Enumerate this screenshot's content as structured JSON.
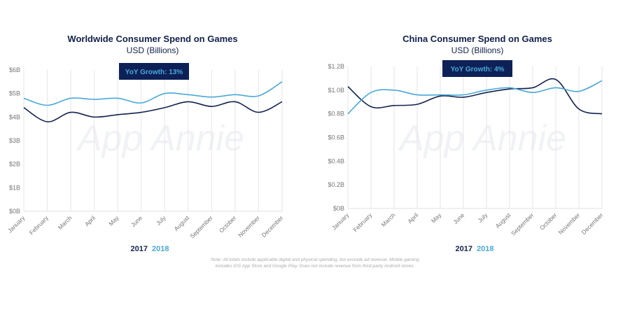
{
  "colors": {
    "y2017": "#13234f",
    "y2018": "#4aa8d8",
    "badge_bg": "#0d2157",
    "badge_text": "#4aa8d8",
    "grid": "#e6e6ea"
  },
  "watermark": "App Annie",
  "note": {
    "line1": "Note: All totals include applicable digital and physical spending, but exclude ad revenue. Mobile gaming",
    "line2": "includes iOS App Store and Google Play. Does not include revenue from third-party Android stores."
  },
  "chart_data": [
    {
      "type": "line",
      "title": "Worldwide Consumer Spend on Games",
      "subtitle": "USD (Billions)",
      "badge": "YoY Growth: 13%",
      "categories": [
        "January",
        "February",
        "March",
        "April",
        "May",
        "June",
        "July",
        "August",
        "September",
        "October",
        "November",
        "December"
      ],
      "yticks": [
        "$0B",
        "$1B",
        "$2B",
        "$3B",
        "$4B",
        "$5B",
        "$6B"
      ],
      "ylim": [
        0,
        6
      ],
      "grid": "vertical",
      "legend_position": "bottom",
      "series": [
        {
          "name": "2017",
          "color": "#13234f",
          "values": [
            4.4,
            3.8,
            4.2,
            4.0,
            4.1,
            4.2,
            4.4,
            4.65,
            4.45,
            4.65,
            4.2,
            4.65
          ]
        },
        {
          "name": "2018",
          "color": "#4aa8d8",
          "values": [
            4.8,
            4.5,
            4.8,
            4.75,
            4.8,
            4.6,
            5.0,
            4.95,
            4.85,
            4.95,
            4.9,
            5.5
          ]
        }
      ]
    },
    {
      "type": "line",
      "title": "China Consumer Spend on Games",
      "subtitle": "USD (Billions)",
      "badge": "YoY Growth: 4%",
      "categories": [
        "January",
        "February",
        "March",
        "April",
        "May",
        "June",
        "July",
        "August",
        "September",
        "October",
        "November",
        "December"
      ],
      "yticks": [
        "$0B",
        "$0.2B",
        "$0.4B",
        "$0.6B",
        "$0.8B",
        "$1.0B",
        "$1.2B"
      ],
      "ylim": [
        0,
        1.2
      ],
      "grid": "vertical",
      "legend_position": "bottom",
      "series": [
        {
          "name": "2017",
          "color": "#13234f",
          "values": [
            1.03,
            0.86,
            0.87,
            0.88,
            0.95,
            0.94,
            0.98,
            1.01,
            1.02,
            1.09,
            0.84,
            0.8
          ]
        },
        {
          "name": "2018",
          "color": "#4aa8d8",
          "values": [
            0.8,
            0.98,
            1.0,
            0.96,
            0.96,
            0.96,
            1.0,
            1.02,
            0.98,
            1.02,
            0.99,
            1.08
          ]
        }
      ]
    }
  ]
}
